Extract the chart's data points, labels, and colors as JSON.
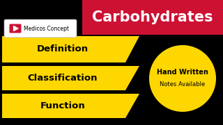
{
  "bg_color": "#000000",
  "title_text": "Carbohydrates",
  "title_bg": "#CC1133",
  "title_fg": "#FFFFFF",
  "banner_color": "#FFD700",
  "banner_items": [
    "Definition",
    "Classification",
    "Function"
  ],
  "circle_color": "#FFD700",
  "circle_text1": "Hand Written",
  "circle_text2": "Notes Available",
  "channel_text": "Medicos Concept",
  "channel_bg": "#FFFFFF",
  "channel_icon_color": "#CC1133"
}
